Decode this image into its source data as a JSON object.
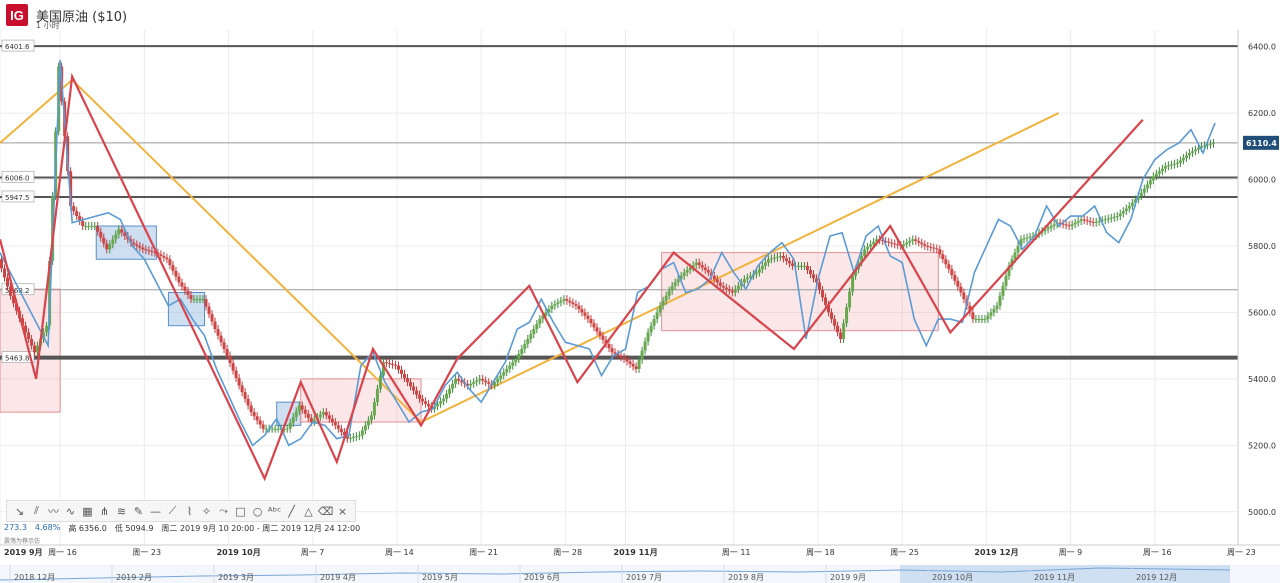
{
  "header": {
    "logo": "IG",
    "title": "美国原油 ($10)",
    "interval": "1 小时"
  },
  "toolbar": {
    "tools": [
      "trend-line-icon",
      "parallel-channel-icon",
      "zigzag-icon",
      "wave-icon",
      "grid-icon",
      "pitchfork-icon",
      "fib-icon",
      "pen-icon",
      "horizontal-line-icon",
      "ruler-icon",
      "brush-icon",
      "gann-icon",
      "path-icon",
      "rectangle-icon",
      "ellipse-icon",
      "text-icon",
      "arrow-icon",
      "triangle-icon",
      "eraser-icon",
      "close-icon"
    ],
    "glyphs": [
      "↘",
      "⫽",
      "〰",
      "∿",
      "▦",
      "⋔",
      "≋",
      "✎",
      "—",
      "⟋",
      "⌇",
      "✧",
      "⤳",
      "□",
      "○",
      "ᴬᵇᶜ",
      "╱",
      "△",
      "⌫",
      "×"
    ]
  },
  "stats": {
    "change": "273.3",
    "percent": "4.68%",
    "high": "高 6356.0",
    "low": "低 5094.9",
    "range": "周二 2019 9月 10 20:00 - 周二 2019 12月 24 12:00"
  },
  "note": "震荡为荐示仿",
  "chart_data": {
    "type": "candlestick",
    "title": "美国原油 ($10)",
    "ylim": [
      4900,
      6450
    ],
    "y_ticks": [
      5000,
      5200,
      5400,
      5600,
      5800,
      6000,
      6200,
      6400
    ],
    "y_tick_labels": [
      "5000.0",
      "5200.0",
      "5400.0",
      "5600.0",
      "5800.0",
      "6000.0",
      "6200.0",
      "6400.0"
    ],
    "last_price": "6110.4",
    "x_range": [
      0,
      101
    ],
    "x_ticks": [
      {
        "x": 0,
        "label": "2019 9月",
        "bold": true
      },
      {
        "x": 5,
        "label": "周一 16"
      },
      {
        "x": 12,
        "label": "周一 23"
      },
      {
        "x": 19,
        "label": "2019 10月",
        "bold": true
      },
      {
        "x": 26,
        "label": "周一 7"
      },
      {
        "x": 33,
        "label": "周一 14"
      },
      {
        "x": 40,
        "label": "周一 21"
      },
      {
        "x": 47,
        "label": "周一 28"
      },
      {
        "x": 52,
        "label": "2019 11月",
        "bold": true
      },
      {
        "x": 61,
        "label": "周一 11"
      },
      {
        "x": 68,
        "label": "周一 18"
      },
      {
        "x": 75,
        "label": "周一 25"
      },
      {
        "x": 82,
        "label": "2019 12月",
        "bold": true
      },
      {
        "x": 89,
        "label": "周一 9"
      },
      {
        "x": 96,
        "label": "周一 16"
      },
      {
        "x": 103,
        "label": "周一 23"
      }
    ],
    "horizontal_levels": [
      {
        "value": 6401.6,
        "label": "6401.6",
        "weight": "normal"
      },
      {
        "value": 6006.0,
        "label": "6006.0",
        "weight": "normal"
      },
      {
        "value": 5947.5,
        "label": "5947.5",
        "weight": "normal"
      },
      {
        "value": 5668.2,
        "label": "5668.2",
        "weight": "thin"
      },
      {
        "value": 5463.8,
        "label": "5463.8",
        "weight": "bold"
      },
      {
        "value": 6110.4,
        "label": "",
        "weight": "thin"
      }
    ],
    "price_path": [
      [
        0,
        5760
      ],
      [
        1,
        5650
      ],
      [
        2,
        5560
      ],
      [
        3,
        5480
      ],
      [
        4,
        5560
      ],
      [
        5,
        6340
      ],
      [
        6,
        5920
      ],
      [
        7,
        5860
      ],
      [
        8,
        5860
      ],
      [
        9,
        5790
      ],
      [
        10,
        5850
      ],
      [
        11,
        5810
      ],
      [
        12,
        5790
      ],
      [
        13,
        5780
      ],
      [
        14,
        5760
      ],
      [
        15,
        5690
      ],
      [
        16,
        5640
      ],
      [
        17,
        5640
      ],
      [
        18,
        5550
      ],
      [
        19,
        5470
      ],
      [
        20,
        5380
      ],
      [
        21,
        5300
      ],
      [
        22,
        5250
      ],
      [
        23,
        5250
      ],
      [
        24,
        5250
      ],
      [
        25,
        5320
      ],
      [
        26,
        5270
      ],
      [
        27,
        5300
      ],
      [
        28,
        5260
      ],
      [
        29,
        5220
      ],
      [
        30,
        5230
      ],
      [
        31,
        5290
      ],
      [
        32,
        5450
      ],
      [
        33,
        5440
      ],
      [
        34,
        5390
      ],
      [
        35,
        5340
      ],
      [
        36,
        5310
      ],
      [
        37,
        5340
      ],
      [
        38,
        5400
      ],
      [
        39,
        5380
      ],
      [
        40,
        5400
      ],
      [
        41,
        5380
      ],
      [
        42,
        5420
      ],
      [
        43,
        5460
      ],
      [
        44,
        5520
      ],
      [
        45,
        5580
      ],
      [
        46,
        5620
      ],
      [
        47,
        5640
      ],
      [
        48,
        5620
      ],
      [
        49,
        5580
      ],
      [
        50,
        5530
      ],
      [
        51,
        5480
      ],
      [
        52,
        5460
      ],
      [
        53,
        5430
      ],
      [
        54,
        5540
      ],
      [
        55,
        5620
      ],
      [
        56,
        5680
      ],
      [
        57,
        5720
      ],
      [
        58,
        5750
      ],
      [
        59,
        5720
      ],
      [
        60,
        5680
      ],
      [
        61,
        5660
      ],
      [
        62,
        5700
      ],
      [
        63,
        5720
      ],
      [
        64,
        5760
      ],
      [
        65,
        5770
      ],
      [
        66,
        5740
      ],
      [
        67,
        5740
      ],
      [
        68,
        5690
      ],
      [
        69,
        5600
      ],
      [
        70,
        5520
      ],
      [
        71,
        5710
      ],
      [
        72,
        5790
      ],
      [
        73,
        5820
      ],
      [
        74,
        5810
      ],
      [
        75,
        5800
      ],
      [
        76,
        5820
      ],
      [
        77,
        5800
      ],
      [
        78,
        5790
      ],
      [
        79,
        5730
      ],
      [
        80,
        5660
      ],
      [
        81,
        5580
      ],
      [
        82,
        5580
      ],
      [
        83,
        5620
      ],
      [
        84,
        5740
      ],
      [
        85,
        5820
      ],
      [
        86,
        5830
      ],
      [
        87,
        5850
      ],
      [
        88,
        5870
      ],
      [
        89,
        5860
      ],
      [
        90,
        5880
      ],
      [
        91,
        5870
      ],
      [
        92,
        5880
      ],
      [
        93,
        5890
      ],
      [
        94,
        5920
      ],
      [
        95,
        5960
      ],
      [
        96,
        6010
      ],
      [
        97,
        6040
      ],
      [
        98,
        6050
      ],
      [
        99,
        6080
      ],
      [
        100,
        6100
      ],
      [
        101,
        6110
      ]
    ],
    "blue_path": [
      [
        0,
        5780
      ],
      [
        4,
        5500
      ],
      [
        5,
        6360
      ],
      [
        6,
        5870
      ],
      [
        9,
        5900
      ],
      [
        10,
        5880
      ],
      [
        11,
        5800
      ],
      [
        12,
        5760
      ],
      [
        13,
        5690
      ],
      [
        14,
        5620
      ],
      [
        15,
        5640
      ],
      [
        16,
        5580
      ],
      [
        17,
        5530
      ],
      [
        18,
        5430
      ],
      [
        19,
        5350
      ],
      [
        20,
        5270
      ],
      [
        21,
        5200
      ],
      [
        22,
        5230
      ],
      [
        23,
        5280
      ],
      [
        24,
        5200
      ],
      [
        25,
        5220
      ],
      [
        26,
        5270
      ],
      [
        27,
        5260
      ],
      [
        28,
        5220
      ],
      [
        29,
        5230
      ],
      [
        30,
        5440
      ],
      [
        31,
        5480
      ],
      [
        32,
        5390
      ],
      [
        33,
        5330
      ],
      [
        34,
        5270
      ],
      [
        35,
        5300
      ],
      [
        36,
        5310
      ],
      [
        37,
        5380
      ],
      [
        38,
        5420
      ],
      [
        39,
        5370
      ],
      [
        40,
        5330
      ],
      [
        41,
        5390
      ],
      [
        42,
        5450
      ],
      [
        43,
        5550
      ],
      [
        44,
        5570
      ],
      [
        45,
        5640
      ],
      [
        46,
        5570
      ],
      [
        47,
        5510
      ],
      [
        48,
        5500
      ],
      [
        49,
        5490
      ],
      [
        50,
        5410
      ],
      [
        51,
        5470
      ],
      [
        52,
        5490
      ],
      [
        53,
        5660
      ],
      [
        54,
        5680
      ],
      [
        55,
        5730
      ],
      [
        56,
        5750
      ],
      [
        57,
        5660
      ],
      [
        58,
        5670
      ],
      [
        59,
        5700
      ],
      [
        60,
        5780
      ],
      [
        61,
        5720
      ],
      [
        62,
        5670
      ],
      [
        63,
        5740
      ],
      [
        64,
        5780
      ],
      [
        65,
        5810
      ],
      [
        66,
        5760
      ],
      [
        67,
        5520
      ],
      [
        68,
        5700
      ],
      [
        69,
        5830
      ],
      [
        70,
        5840
      ],
      [
        71,
        5720
      ],
      [
        72,
        5830
      ],
      [
        73,
        5860
      ],
      [
        74,
        5770
      ],
      [
        75,
        5750
      ],
      [
        76,
        5580
      ],
      [
        77,
        5500
      ],
      [
        78,
        5580
      ],
      [
        79,
        5580
      ],
      [
        80,
        5570
      ],
      [
        81,
        5720
      ],
      [
        82,
        5800
      ],
      [
        83,
        5880
      ],
      [
        84,
        5860
      ],
      [
        85,
        5790
      ],
      [
        86,
        5830
      ],
      [
        87,
        5920
      ],
      [
        88,
        5860
      ],
      [
        89,
        5890
      ],
      [
        90,
        5890
      ],
      [
        91,
        5920
      ],
      [
        92,
        5840
      ],
      [
        93,
        5810
      ],
      [
        94,
        5880
      ],
      [
        95,
        6000
      ],
      [
        96,
        6060
      ],
      [
        97,
        6090
      ],
      [
        98,
        6110
      ],
      [
        99,
        6150
      ],
      [
        100,
        6080
      ],
      [
        101,
        6170
      ]
    ],
    "red_zigzag": [
      [
        0,
        5820
      ],
      [
        3,
        5400
      ],
      [
        6,
        6310
      ],
      [
        22,
        5100
      ],
      [
        25,
        5390
      ],
      [
        28,
        5150
      ],
      [
        31,
        5490
      ],
      [
        35,
        5260
      ],
      [
        38,
        5460
      ],
      [
        44,
        5680
      ],
      [
        48,
        5390
      ],
      [
        56,
        5780
      ],
      [
        66,
        5490
      ],
      [
        74,
        5860
      ],
      [
        79,
        5540
      ],
      [
        95,
        6180
      ]
    ],
    "orange_lines": [
      [
        [
          0,
          6110
        ],
        [
          6,
          6300
        ],
        [
          35,
          5270
        ],
        [
          88,
          6200
        ]
      ]
    ],
    "boxes": [
      {
        "x0": 0,
        "x1": 5,
        "y0": 5300,
        "y1": 5670,
        "color": "red"
      },
      {
        "x0": 8,
        "x1": 13,
        "y0": 5760,
        "y1": 5860,
        "color": "blue"
      },
      {
        "x0": 14,
        "x1": 17,
        "y0": 5560,
        "y1": 5660,
        "color": "blue"
      },
      {
        "x0": 23,
        "x1": 25,
        "y0": 5260,
        "y1": 5330,
        "color": "blue"
      },
      {
        "x0": 25,
        "x1": 35,
        "y0": 5270,
        "y1": 5400,
        "color": "red"
      },
      {
        "x0": 55,
        "x1": 78,
        "y0": 5545,
        "y1": 5780,
        "color": "red"
      }
    ],
    "navigator_labels": [
      "2018 12月",
      "2019 2月",
      "2019 3月",
      "2019 4月",
      "2019 5月",
      "2019 6月",
      "2019 7月",
      "2019 8月",
      "2019 9月",
      "2019 10月",
      "2019 11月",
      "2019 12月"
    ]
  }
}
